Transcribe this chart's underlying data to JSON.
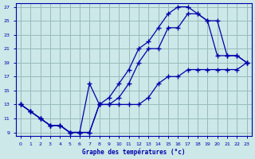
{
  "xlabel": "Graphe des températures (°c)",
  "bg_color": "#cce8e8",
  "grid_color": "#99bbbb",
  "line_color": "#0000aa",
  "xlim_min": -0.5,
  "xlim_max": 23.5,
  "ylim_min": 8.5,
  "ylim_max": 27.5,
  "xticks": [
    0,
    1,
    2,
    3,
    4,
    5,
    6,
    7,
    8,
    9,
    10,
    11,
    12,
    13,
    14,
    15,
    16,
    17,
    18,
    19,
    20,
    21,
    22,
    23
  ],
  "yticks": [
    9,
    11,
    13,
    15,
    17,
    19,
    21,
    23,
    25,
    27
  ],
  "line1_x": [
    0,
    1,
    2,
    3,
    4,
    5,
    6,
    7,
    8,
    9,
    10,
    11,
    12,
    13,
    14,
    15,
    16,
    17,
    18,
    19,
    20,
    21,
    22,
    23
  ],
  "line1_y": [
    13,
    12,
    11,
    10,
    10,
    9,
    9,
    9,
    13,
    13,
    13,
    13,
    13,
    14,
    16,
    17,
    17,
    18,
    18,
    18,
    18,
    18,
    18,
    19
  ],
  "line2_x": [
    0,
    1,
    2,
    3,
    4,
    5,
    6,
    7,
    8,
    9,
    10,
    11,
    12,
    13,
    14,
    15,
    16,
    17,
    18,
    19,
    20,
    21,
    22,
    23
  ],
  "line2_y": [
    13,
    12,
    11,
    10,
    10,
    9,
    9,
    16,
    13,
    13,
    14,
    16,
    19,
    21,
    21,
    24,
    24,
    26,
    26,
    25,
    20,
    20,
    20,
    19
  ],
  "line3_x": [
    0,
    1,
    2,
    3,
    4,
    5,
    6,
    7,
    8,
    9,
    10,
    11,
    12,
    13,
    14,
    15,
    16,
    17,
    18,
    19,
    20,
    21,
    22,
    23
  ],
  "line3_y": [
    13,
    12,
    11,
    10,
    10,
    9,
    9,
    9,
    13,
    14,
    16,
    18,
    21,
    22,
    24,
    26,
    27,
    27,
    26,
    25,
    25,
    20,
    20,
    19
  ]
}
